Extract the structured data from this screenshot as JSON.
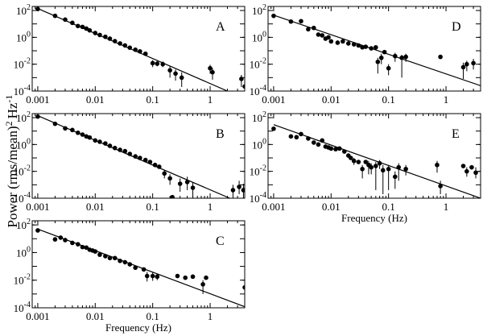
{
  "figure": {
    "ylabel_main": "Power (rms/mean)",
    "ylabel_exp1": "2",
    "ylabel_unit": "Hz",
    "ylabel_exp2": "-1"
  },
  "chart_data": [
    {
      "type": "scatter",
      "panel_label": "A",
      "xscale": "log",
      "yscale": "log",
      "xlim": [
        0.0008,
        4
      ],
      "ylim": [
        0.0001,
        200
      ],
      "xticklabels": [
        "0.001",
        "0.01",
        "0.1",
        "1"
      ],
      "yticklabels": [
        "10^2",
        "10^0",
        "10^-2",
        "10^-4"
      ],
      "xlabel": "",
      "fit_line": {
        "x": [
          0.001,
          2
        ],
        "y": [
          140,
          0.0001
        ]
      },
      "points": [
        {
          "x": 0.001,
          "y": 130,
          "lo": null,
          "hi": null
        },
        {
          "x": 0.002,
          "y": 40,
          "lo": null,
          "hi": null
        },
        {
          "x": 0.003,
          "y": 21,
          "lo": null,
          "hi": null
        },
        {
          "x": 0.004,
          "y": 12,
          "lo": null,
          "hi": null
        },
        {
          "x": 0.005,
          "y": 7,
          "lo": null,
          "hi": null
        },
        {
          "x": 0.006,
          "y": 6,
          "lo": null,
          "hi": null
        },
        {
          "x": 0.007,
          "y": 4.5,
          "lo": null,
          "hi": null
        },
        {
          "x": 0.008,
          "y": 3.3,
          "lo": null,
          "hi": null
        },
        {
          "x": 0.01,
          "y": 2.1,
          "lo": null,
          "hi": null
        },
        {
          "x": 0.012,
          "y": 1.5,
          "lo": null,
          "hi": null
        },
        {
          "x": 0.015,
          "y": 1.1,
          "lo": null,
          "hi": null
        },
        {
          "x": 0.018,
          "y": 0.8,
          "lo": null,
          "hi": null
        },
        {
          "x": 0.022,
          "y": 0.52,
          "lo": null,
          "hi": null
        },
        {
          "x": 0.027,
          "y": 0.35,
          "lo": null,
          "hi": null
        },
        {
          "x": 0.033,
          "y": 0.25,
          "lo": null,
          "hi": null
        },
        {
          "x": 0.04,
          "y": 0.17,
          "lo": null,
          "hi": null
        },
        {
          "x": 0.05,
          "y": 0.12,
          "lo": null,
          "hi": null
        },
        {
          "x": 0.06,
          "y": 0.09,
          "lo": null,
          "hi": null
        },
        {
          "x": 0.075,
          "y": 0.06,
          "lo": null,
          "hi": null
        },
        {
          "x": 0.1,
          "y": 0.012,
          "lo": 0.006,
          "hi": 0.02
        },
        {
          "x": 0.12,
          "y": 0.011,
          "lo": 0.007,
          "hi": 0.017
        },
        {
          "x": 0.15,
          "y": 0.01,
          "lo": 0.006,
          "hi": 0.016
        },
        {
          "x": 0.2,
          "y": 0.0035,
          "lo": 0.001,
          "hi": 0.007
        },
        {
          "x": 0.25,
          "y": 0.002,
          "lo": 0.0006,
          "hi": 0.004
        },
        {
          "x": 0.32,
          "y": 0.001,
          "lo": 0.0002,
          "hi": 0.0025
        },
        {
          "x": 1.0,
          "y": 0.005,
          "lo": 0.002,
          "hi": 0.009
        },
        {
          "x": 1.1,
          "y": 0.0025,
          "lo": 0.0007,
          "hi": 0.005
        },
        {
          "x": 3.5,
          "y": 0.0008,
          "lo": 0.0002,
          "hi": 0.0016
        },
        {
          "x": 4.0,
          "y": 0.00022,
          "lo": 0.0001,
          "hi": 0.0005
        }
      ]
    },
    {
      "type": "scatter",
      "panel_label": "B",
      "xscale": "log",
      "yscale": "log",
      "xlim": [
        0.0008,
        4
      ],
      "ylim": [
        0.0001,
        200
      ],
      "xticklabels": [
        "0.001",
        "0.01",
        "0.1",
        "1"
      ],
      "yticklabels": [
        "10^2",
        "10^0",
        "10^-2",
        "10^-4"
      ],
      "xlabel": "",
      "fit_line": {
        "x": [
          0.001,
          2.2
        ],
        "y": [
          140,
          0.0001
        ]
      },
      "points": [
        {
          "x": 0.001,
          "y": 120,
          "lo": null,
          "hi": null
        },
        {
          "x": 0.002,
          "y": 35,
          "lo": null,
          "hi": null
        },
        {
          "x": 0.003,
          "y": 16,
          "lo": null,
          "hi": null
        },
        {
          "x": 0.004,
          "y": 12,
          "lo": null,
          "hi": null
        },
        {
          "x": 0.005,
          "y": 7.5,
          "lo": null,
          "hi": null
        },
        {
          "x": 0.006,
          "y": 5.5,
          "lo": null,
          "hi": null
        },
        {
          "x": 0.007,
          "y": 4,
          "lo": null,
          "hi": null
        },
        {
          "x": 0.008,
          "y": 3.3,
          "lo": null,
          "hi": null
        },
        {
          "x": 0.01,
          "y": 2,
          "lo": null,
          "hi": null
        },
        {
          "x": 0.012,
          "y": 1.6,
          "lo": null,
          "hi": null
        },
        {
          "x": 0.015,
          "y": 1.2,
          "lo": null,
          "hi": null
        },
        {
          "x": 0.018,
          "y": 0.8,
          "lo": null,
          "hi": null
        },
        {
          "x": 0.022,
          "y": 0.55,
          "lo": null,
          "hi": null
        },
        {
          "x": 0.027,
          "y": 0.4,
          "lo": null,
          "hi": null
        },
        {
          "x": 0.033,
          "y": 0.32,
          "lo": null,
          "hi": null
        },
        {
          "x": 0.04,
          "y": 0.2,
          "lo": null,
          "hi": null
        },
        {
          "x": 0.05,
          "y": 0.13,
          "lo": null,
          "hi": null
        },
        {
          "x": 0.06,
          "y": 0.1,
          "lo": null,
          "hi": null
        },
        {
          "x": 0.075,
          "y": 0.07,
          "lo": null,
          "hi": null
        },
        {
          "x": 0.09,
          "y": 0.05,
          "lo": null,
          "hi": null
        },
        {
          "x": 0.11,
          "y": 0.03,
          "lo": null,
          "hi": null
        },
        {
          "x": 0.13,
          "y": 0.022,
          "lo": null,
          "hi": null
        },
        {
          "x": 0.16,
          "y": 0.007,
          "lo": 0.003,
          "hi": 0.012
        },
        {
          "x": 0.2,
          "y": 0.003,
          "lo": 0.001,
          "hi": 0.006
        },
        {
          "x": 0.22,
          "y": 0.00012,
          "lo": null,
          "hi": null
        },
        {
          "x": 0.3,
          "y": 0.0012,
          "lo": 0.0003,
          "hi": 0.003
        },
        {
          "x": 0.4,
          "y": 0.0016,
          "lo": 0.0004,
          "hi": 0.004
        },
        {
          "x": 0.5,
          "y": 0.0006,
          "lo": 0.0001,
          "hi": 0.0015
        },
        {
          "x": 2.5,
          "y": 0.0004,
          "lo": 0.0001,
          "hi": 0.001
        },
        {
          "x": 3.2,
          "y": 0.0007,
          "lo": 0.0002,
          "hi": 0.002
        },
        {
          "x": 3.8,
          "y": 0.0004,
          "lo": 0.0001,
          "hi": 0.0012
        }
      ]
    },
    {
      "type": "scatter",
      "panel_label": "C",
      "xscale": "log",
      "yscale": "log",
      "xlim": [
        0.0008,
        4
      ],
      "ylim": [
        0.0001,
        200
      ],
      "xticklabels": [
        "0.001",
        "0.01",
        "0.1",
        "1"
      ],
      "yticklabels": [
        "10^2",
        "10^0",
        "10^-2",
        "10^-4"
      ],
      "xlabel": "Frequency (Hz)",
      "fit_line": {
        "x": [
          0.001,
          4
        ],
        "y": [
          50,
          0.00012
        ]
      },
      "points": [
        {
          "x": 0.001,
          "y": 40,
          "lo": null,
          "hi": null
        },
        {
          "x": 0.002,
          "y": 9,
          "lo": null,
          "hi": null
        },
        {
          "x": 0.0025,
          "y": 12,
          "lo": null,
          "hi": null
        },
        {
          "x": 0.003,
          "y": 8,
          "lo": null,
          "hi": null
        },
        {
          "x": 0.004,
          "y": 5,
          "lo": null,
          "hi": null
        },
        {
          "x": 0.005,
          "y": 4,
          "lo": null,
          "hi": null
        },
        {
          "x": 0.006,
          "y": 2.5,
          "lo": null,
          "hi": null
        },
        {
          "x": 0.007,
          "y": 2.3,
          "lo": null,
          "hi": null
        },
        {
          "x": 0.008,
          "y": 1.6,
          "lo": null,
          "hi": null
        },
        {
          "x": 0.009,
          "y": 1.4,
          "lo": null,
          "hi": null
        },
        {
          "x": 0.01,
          "y": 1.2,
          "lo": null,
          "hi": null
        },
        {
          "x": 0.012,
          "y": 0.7,
          "lo": null,
          "hi": null
        },
        {
          "x": 0.015,
          "y": 0.55,
          "lo": null,
          "hi": null
        },
        {
          "x": 0.018,
          "y": 0.4,
          "lo": null,
          "hi": null
        },
        {
          "x": 0.022,
          "y": 0.4,
          "lo": null,
          "hi": null
        },
        {
          "x": 0.027,
          "y": 0.25,
          "lo": null,
          "hi": null
        },
        {
          "x": 0.033,
          "y": 0.2,
          "lo": null,
          "hi": null
        },
        {
          "x": 0.04,
          "y": 0.14,
          "lo": null,
          "hi": null
        },
        {
          "x": 0.05,
          "y": 0.08,
          "lo": null,
          "hi": null
        },
        {
          "x": 0.07,
          "y": 0.06,
          "lo": null,
          "hi": null
        },
        {
          "x": 0.08,
          "y": 0.02,
          "lo": 0.008,
          "hi": 0.04
        },
        {
          "x": 0.1,
          "y": 0.02,
          "lo": 0.009,
          "hi": 0.035
        },
        {
          "x": 0.12,
          "y": 0.018,
          "lo": 0.01,
          "hi": 0.03
        },
        {
          "x": 0.27,
          "y": 0.02,
          "lo": null,
          "hi": null
        },
        {
          "x": 0.37,
          "y": 0.015,
          "lo": null,
          "hi": null
        },
        {
          "x": 0.5,
          "y": 0.018,
          "lo": null,
          "hi": null
        },
        {
          "x": 0.75,
          "y": 0.005,
          "lo": 0.001,
          "hi": 0.01
        },
        {
          "x": 0.85,
          "y": 0.015,
          "lo": null,
          "hi": null
        },
        {
          "x": 4.0,
          "y": 0.003,
          "lo": 0.0012,
          "hi": 0.006
        }
      ]
    },
    {
      "type": "scatter",
      "panel_label": "D",
      "xscale": "log",
      "yscale": "log",
      "xlim": [
        0.0008,
        4
      ],
      "ylim": [
        0.0001,
        200
      ],
      "xticklabels": [
        "0.001",
        "0.01",
        "0.1",
        "1"
      ],
      "yticklabels": [
        "10^2",
        "10^0",
        "10^-2",
        "10^-4"
      ],
      "xlabel": "",
      "fit_line": {
        "x": [
          0.001,
          4
        ],
        "y": [
          45,
          0.00025
        ]
      },
      "points": [
        {
          "x": 0.001,
          "y": 40,
          "lo": null,
          "hi": null
        },
        {
          "x": 0.002,
          "y": 15,
          "lo": null,
          "hi": null
        },
        {
          "x": 0.003,
          "y": 16,
          "lo": null,
          "hi": null
        },
        {
          "x": 0.004,
          "y": 4,
          "lo": null,
          "hi": null
        },
        {
          "x": 0.005,
          "y": 5,
          "lo": null,
          "hi": null
        },
        {
          "x": 0.006,
          "y": 1.6,
          "lo": null,
          "hi": null
        },
        {
          "x": 0.007,
          "y": 1.4,
          "lo": null,
          "hi": null
        },
        {
          "x": 0.008,
          "y": 0.8,
          "lo": null,
          "hi": null
        },
        {
          "x": 0.009,
          "y": 1.0,
          "lo": null,
          "hi": null
        },
        {
          "x": 0.01,
          "y": 0.5,
          "lo": null,
          "hi": null
        },
        {
          "x": 0.013,
          "y": 0.4,
          "lo": null,
          "hi": null
        },
        {
          "x": 0.016,
          "y": 0.5,
          "lo": null,
          "hi": null
        },
        {
          "x": 0.02,
          "y": 0.35,
          "lo": null,
          "hi": null
        },
        {
          "x": 0.025,
          "y": 0.3,
          "lo": null,
          "hi": null
        },
        {
          "x": 0.03,
          "y": 0.25,
          "lo": null,
          "hi": null
        },
        {
          "x": 0.035,
          "y": 0.18,
          "lo": null,
          "hi": null
        },
        {
          "x": 0.04,
          "y": 0.2,
          "lo": null,
          "hi": null
        },
        {
          "x": 0.05,
          "y": 0.15,
          "lo": null,
          "hi": null
        },
        {
          "x": 0.06,
          "y": 0.18,
          "lo": null,
          "hi": null
        },
        {
          "x": 0.065,
          "y": 0.015,
          "lo": 0.002,
          "hi": 0.03
        },
        {
          "x": 0.075,
          "y": 0.03,
          "lo": 0.01,
          "hi": 0.06
        },
        {
          "x": 0.085,
          "y": 0.08,
          "lo": null,
          "hi": null
        },
        {
          "x": 0.1,
          "y": 0.005,
          "lo": 0.0015,
          "hi": 0.01
        },
        {
          "x": 0.13,
          "y": 0.04,
          "lo": 0.015,
          "hi": 0.07
        },
        {
          "x": 0.17,
          "y": 0.03,
          "lo": 0.001,
          "hi": 0.05
        },
        {
          "x": 0.2,
          "y": 0.035,
          "lo": 0.015,
          "hi": 0.06
        },
        {
          "x": 0.8,
          "y": 0.035,
          "lo": null,
          "hi": null
        },
        {
          "x": 2.0,
          "y": 0.006,
          "lo": 0.0008,
          "hi": 0.013
        },
        {
          "x": 2.3,
          "y": 0.01,
          "lo": 0.003,
          "hi": 0.018
        },
        {
          "x": 3.0,
          "y": 0.012,
          "lo": 0.004,
          "hi": 0.025
        }
      ]
    },
    {
      "type": "scatter",
      "panel_label": "E",
      "xscale": "log",
      "yscale": "log",
      "xlim": [
        0.0008,
        4
      ],
      "ylim": [
        0.0001,
        200
      ],
      "xticklabels": [
        "0.001",
        "0.01",
        "0.1",
        "1"
      ],
      "yticklabels": [
        "10^2",
        "10^0",
        "10^-2",
        "10^-4"
      ],
      "xlabel": "Frequency (Hz)",
      "fit_line": {
        "x": [
          0.001,
          4
        ],
        "y": [
          30,
          0.0001
        ]
      },
      "points": [
        {
          "x": 0.001,
          "y": 15,
          "lo": null,
          "hi": null
        },
        {
          "x": 0.002,
          "y": 4,
          "lo": null,
          "hi": null
        },
        {
          "x": 0.0025,
          "y": 3.5,
          "lo": null,
          "hi": null
        },
        {
          "x": 0.003,
          "y": 6,
          "lo": null,
          "hi": null
        },
        {
          "x": 0.004,
          "y": 2.8,
          "lo": null,
          "hi": null
        },
        {
          "x": 0.005,
          "y": 1.4,
          "lo": null,
          "hi": null
        },
        {
          "x": 0.006,
          "y": 1.0,
          "lo": null,
          "hi": null
        },
        {
          "x": 0.007,
          "y": 2.0,
          "lo": null,
          "hi": null
        },
        {
          "x": 0.008,
          "y": 0.7,
          "lo": null,
          "hi": null
        },
        {
          "x": 0.009,
          "y": 0.6,
          "lo": null,
          "hi": null
        },
        {
          "x": 0.01,
          "y": 0.5,
          "lo": null,
          "hi": null
        },
        {
          "x": 0.012,
          "y": 0.45,
          "lo": null,
          "hi": null
        },
        {
          "x": 0.014,
          "y": 0.5,
          "lo": null,
          "hi": null
        },
        {
          "x": 0.017,
          "y": 0.3,
          "lo": null,
          "hi": null
        },
        {
          "x": 0.02,
          "y": 0.15,
          "lo": null,
          "hi": null
        },
        {
          "x": 0.022,
          "y": 0.1,
          "lo": null,
          "hi": null
        },
        {
          "x": 0.025,
          "y": 0.06,
          "lo": 0.03,
          "hi": 0.1
        },
        {
          "x": 0.03,
          "y": 0.05,
          "lo": null,
          "hi": null
        },
        {
          "x": 0.035,
          "y": 0.015,
          "lo": 0.003,
          "hi": 0.03
        },
        {
          "x": 0.04,
          "y": 0.05,
          "lo": null,
          "hi": null
        },
        {
          "x": 0.045,
          "y": 0.03,
          "lo": 0.006,
          "hi": 0.06
        },
        {
          "x": 0.05,
          "y": 0.02,
          "lo": 0.006,
          "hi": 0.04
        },
        {
          "x": 0.06,
          "y": 0.025,
          "lo": 0.0004,
          "hi": 0.05
        },
        {
          "x": 0.07,
          "y": 0.04,
          "lo": 0.015,
          "hi": 0.07
        },
        {
          "x": 0.08,
          "y": 0.012,
          "lo": 0.0002,
          "hi": 0.03
        },
        {
          "x": 0.1,
          "y": 0.015,
          "lo": 0.0004,
          "hi": 0.03
        },
        {
          "x": 0.13,
          "y": 0.004,
          "lo": 0.0005,
          "hi": 0.01
        },
        {
          "x": 0.15,
          "y": 0.02,
          "lo": 0.002,
          "hi": 0.04
        },
        {
          "x": 0.2,
          "y": 0.015,
          "lo": 0.005,
          "hi": 0.03
        },
        {
          "x": 0.7,
          "y": 0.03,
          "lo": 0.008,
          "hi": 0.06
        },
        {
          "x": 0.8,
          "y": 0.0008,
          "lo": 0.0002,
          "hi": 0.002
        },
        {
          "x": 2.0,
          "y": 0.025,
          "lo": null,
          "hi": null
        },
        {
          "x": 2.3,
          "y": 0.01,
          "lo": 0.004,
          "hi": 0.02
        },
        {
          "x": 2.8,
          "y": 0.02,
          "lo": null,
          "hi": null
        },
        {
          "x": 3.3,
          "y": 0.008,
          "lo": 0.003,
          "hi": 0.02
        }
      ]
    }
  ]
}
